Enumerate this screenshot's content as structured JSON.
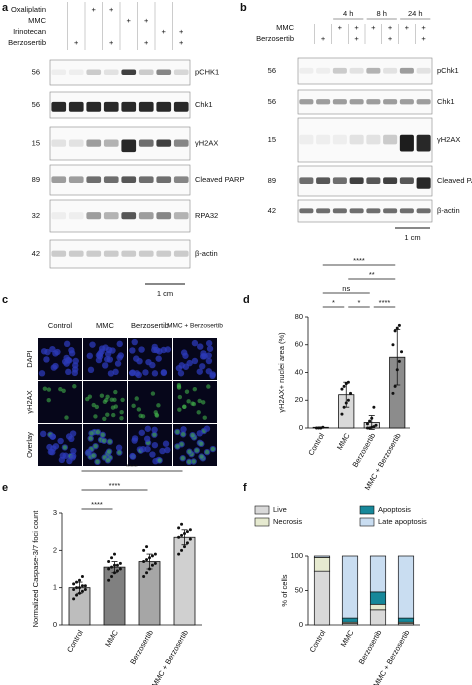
{
  "panels": {
    "a": {
      "label": "a",
      "sign": "+",
      "treatments": [
        {
          "name": "Oxaliplatin",
          "lanes": [
            2,
            3
          ]
        },
        {
          "name": "MMC",
          "lanes": [
            4,
            5
          ]
        },
        {
          "name": "Irinotecan",
          "lanes": [
            6,
            7
          ]
        },
        {
          "name": "Berzosertib",
          "lanes": [
            1,
            3,
            5,
            7
          ]
        }
      ],
      "blots": [
        {
          "marker": 56,
          "protein": "pCHK1"
        },
        {
          "marker": 56,
          "protein": "Chk1"
        },
        {
          "marker": 15,
          "protein": "γH2AX"
        },
        {
          "marker": 89,
          "protein": "Cleaved PARP"
        },
        {
          "marker": 32,
          "protein": "RPA32"
        },
        {
          "marker": 42,
          "protein": "β-actin"
        }
      ],
      "scale": "1 cm"
    },
    "b": {
      "label": "b",
      "sign": "+",
      "times": [
        {
          "label": "4 h",
          "lanes": [
            2,
            3
          ]
        },
        {
          "label": "8 h",
          "lanes": [
            4,
            5
          ]
        },
        {
          "label": "24 h",
          "lanes": [
            6,
            7
          ]
        }
      ],
      "treatments": [
        {
          "name": "MMC",
          "lanes": [
            2,
            3,
            4,
            5,
            6,
            7
          ]
        },
        {
          "name": "Berzosertib",
          "lanes": [
            1,
            3,
            5,
            7
          ]
        }
      ],
      "blots": [
        {
          "marker": 56,
          "protein": "pChk1"
        },
        {
          "marker": 56,
          "protein": "Chk1"
        },
        {
          "marker": 15,
          "protein": "γH2AX"
        },
        {
          "marker": 89,
          "protein": "Cleaved PARP"
        },
        {
          "marker": 42,
          "protein": "β-actin"
        }
      ],
      "scale": "1 cm"
    },
    "c": {
      "label": "c",
      "columns": [
        "Control",
        "MMC",
        "Berzosertib",
        "MMC + Berzosertib"
      ],
      "rows": [
        "DAPI",
        "γH2AX",
        "Overlay"
      ]
    }
  },
  "chart_data": [
    {
      "panel": "d",
      "type": "bar",
      "categories": [
        "Control",
        "MMC",
        "Berzosertib",
        "MMC + Berzosertib"
      ],
      "values": [
        0.5,
        24,
        4,
        51
      ],
      "errors": [
        0.3,
        9,
        5,
        20
      ],
      "colors": [
        "#ffffff",
        "#d9d9d9",
        "#d9d9d9",
        "#8c8c8c"
      ],
      "points": [
        [
          0,
          0,
          0,
          0.5
        ],
        [
          10,
          15,
          18,
          20,
          25,
          28,
          30,
          32,
          33
        ],
        [
          0,
          0,
          0.5,
          1,
          2,
          3,
          5,
          7,
          15
        ],
        [
          25,
          30,
          42,
          48,
          55,
          60,
          70,
          72,
          74
        ]
      ],
      "ylabel": "γH2AX+ nuclei area (%)",
      "ylim": [
        0,
        80
      ],
      "yticks": [
        0,
        20,
        40,
        60,
        80
      ],
      "comparisons": [
        {
          "pair": [
            0,
            3
          ],
          "label": "****"
        },
        {
          "pair": [
            1,
            3
          ],
          "label": "**"
        },
        {
          "pair": [
            0,
            2
          ],
          "label": "ns"
        },
        {
          "pair": [
            0,
            1
          ],
          "label": "*"
        },
        {
          "pair": [
            1,
            2
          ],
          "label": "*"
        },
        {
          "pair": [
            2,
            3
          ],
          "label": "****"
        }
      ]
    },
    {
      "panel": "e",
      "type": "bar",
      "categories": [
        "Control",
        "MMC",
        "Berzosertib",
        "MMC + Berzosertib"
      ],
      "values": [
        1.0,
        1.55,
        1.7,
        2.35
      ],
      "errors": [
        0.15,
        0.15,
        0.2,
        0.2
      ],
      "colors": [
        "#bdbdbd",
        "#808080",
        "#a6a6a6",
        "#d0d0d0"
      ],
      "points": [
        [
          0.7,
          0.8,
          0.85,
          0.9,
          0.95,
          0.95,
          1.0,
          1.0,
          1.05,
          1.05,
          1.1,
          1.15,
          1.2,
          1.3
        ],
        [
          1.2,
          1.3,
          1.4,
          1.45,
          1.5,
          1.5,
          1.55,
          1.6,
          1.6,
          1.65,
          1.7,
          1.8,
          1.9
        ],
        [
          1.3,
          1.4,
          1.5,
          1.6,
          1.65,
          1.7,
          1.75,
          1.8,
          1.85,
          1.9,
          2.0,
          2.1
        ],
        [
          1.9,
          2.0,
          2.1,
          2.2,
          2.3,
          2.35,
          2.4,
          2.45,
          2.5,
          2.55,
          2.6,
          2.7
        ]
      ],
      "ylabel": "Normalized Caspase-3/7 foci count",
      "ylim": [
        0,
        3
      ],
      "yticks": [
        0,
        1,
        2,
        3
      ],
      "comparisons": [
        {
          "pair": [
            0,
            3
          ],
          "label": "****"
        },
        {
          "pair": [
            0,
            2
          ],
          "label": "****"
        },
        {
          "pair": [
            0,
            1
          ],
          "label": "****"
        }
      ]
    },
    {
      "panel": "f",
      "type": "stacked_bar",
      "categories": [
        "Control",
        "MMC",
        "Berzosertib",
        "MMC + Berzosertib"
      ],
      "series": [
        {
          "name": "Live",
          "color": "#d9d9d9",
          "values": [
            78,
            2,
            22,
            2
          ]
        },
        {
          "name": "Necrosis",
          "color": "#e6ead0",
          "values": [
            20,
            2,
            8,
            2
          ]
        },
        {
          "name": "Apoptosis",
          "color": "#17889a",
          "values": [
            0,
            6,
            18,
            6
          ]
        },
        {
          "name": "Late apoptosis",
          "color": "#c9ddf1",
          "values": [
            2,
            90,
            52,
            90
          ]
        }
      ],
      "ylabel": "% of cells",
      "ylim": [
        0,
        100
      ],
      "yticks": [
        0,
        50,
        100
      ]
    }
  ]
}
